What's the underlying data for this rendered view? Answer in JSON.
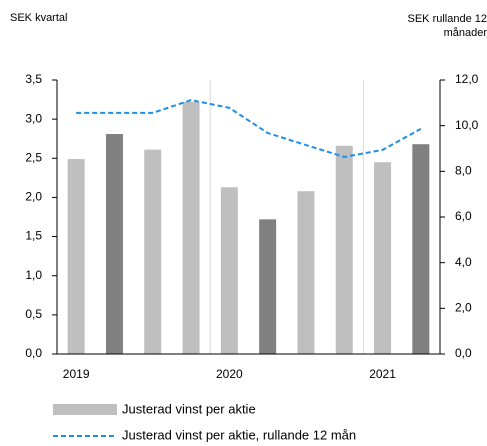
{
  "chart_data": {
    "type": "bar",
    "y_label": "SEK kvartal",
    "y2_label": "SEK rullande 12 månader",
    "categories": [
      "2019",
      null,
      null,
      null,
      "2020",
      null,
      null,
      null,
      "2021",
      null
    ],
    "series": [
      {
        "name": "Justerad vinst per aktie",
        "type": "bar",
        "color": "#bfbfbf",
        "colors": [
          "#bfbfbf",
          "#808080",
          "#bfbfbf",
          "#bfbfbf",
          "#bfbfbf",
          "#808080",
          "#bfbfbf",
          "#bfbfbf",
          "#bfbfbf",
          "#808080"
        ],
        "values": [
          2.49,
          2.81,
          2.61,
          3.22,
          2.13,
          1.72,
          2.08,
          2.66,
          2.45,
          2.68
        ]
      },
      {
        "name": "Justerad vinst per aktie, rullande 12 mån",
        "type": "line",
        "color": "#1e8fe6",
        "axis": "y2",
        "dashed": true,
        "values": [
          10.56,
          10.56,
          10.56,
          11.12,
          10.78,
          9.68,
          9.15,
          8.63,
          8.94,
          9.86
        ]
      }
    ],
    "ylim": [
      0,
      3.5
    ],
    "yticks": [
      {
        "value": 0,
        "label": "0,0"
      },
      {
        "value": 0.5,
        "label": "0,5"
      },
      {
        "value": 1,
        "label": "1,0"
      },
      {
        "value": 1.5,
        "label": "1,5"
      },
      {
        "value": 2,
        "label": "2,0"
      },
      {
        "value": 2.5,
        "label": "2,5"
      },
      {
        "value": 3,
        "label": "3,0"
      },
      {
        "value": 3.5,
        "label": "3,5"
      }
    ],
    "y2lim": [
      0,
      12
    ],
    "y2ticks": [
      {
        "value": 0,
        "label": "0,0"
      },
      {
        "value": 2,
        "label": "2,0"
      },
      {
        "value": 4,
        "label": "4,0"
      },
      {
        "value": 6,
        "label": "6,0"
      },
      {
        "value": 8,
        "label": "8,0"
      },
      {
        "value": 10,
        "label": "10,0"
      },
      {
        "value": 12,
        "label": "12,0"
      }
    ],
    "grid": false
  }
}
